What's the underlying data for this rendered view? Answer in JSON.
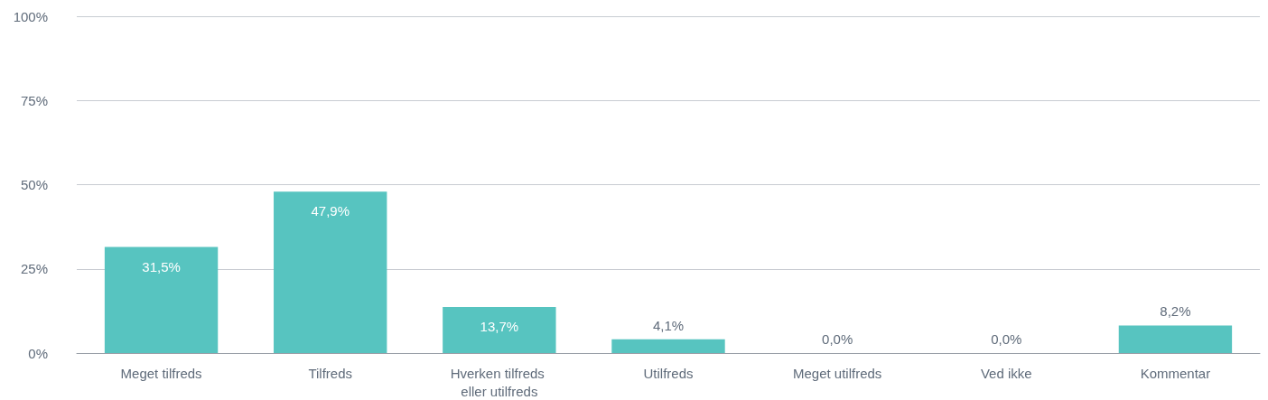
{
  "chart_data": {
    "type": "bar",
    "categories": [
      "Meget tilfreds",
      "Tilfreds",
      "Hverken tilfreds eller utilfreds",
      "Utilfreds",
      "Meget utilfreds",
      "Ved ikke",
      "Kommentar"
    ],
    "values": [
      31.5,
      47.9,
      13.7,
      4.1,
      0,
      0,
      8.2
    ],
    "value_labels": [
      "31,5%",
      "47,9%",
      "13,7%",
      "4,1%",
      "0,0%",
      "0,0%",
      "8,2%"
    ],
    "color": "#57c4c0",
    "ylim": [
      0,
      100
    ],
    "yticks": [
      {
        "value": 0,
        "label": "0%"
      },
      {
        "value": 25,
        "label": "25%"
      },
      {
        "value": 50,
        "label": "50%"
      },
      {
        "value": 75,
        "label": "75%"
      },
      {
        "value": 100,
        "label": "100%"
      }
    ],
    "grid": "y"
  }
}
